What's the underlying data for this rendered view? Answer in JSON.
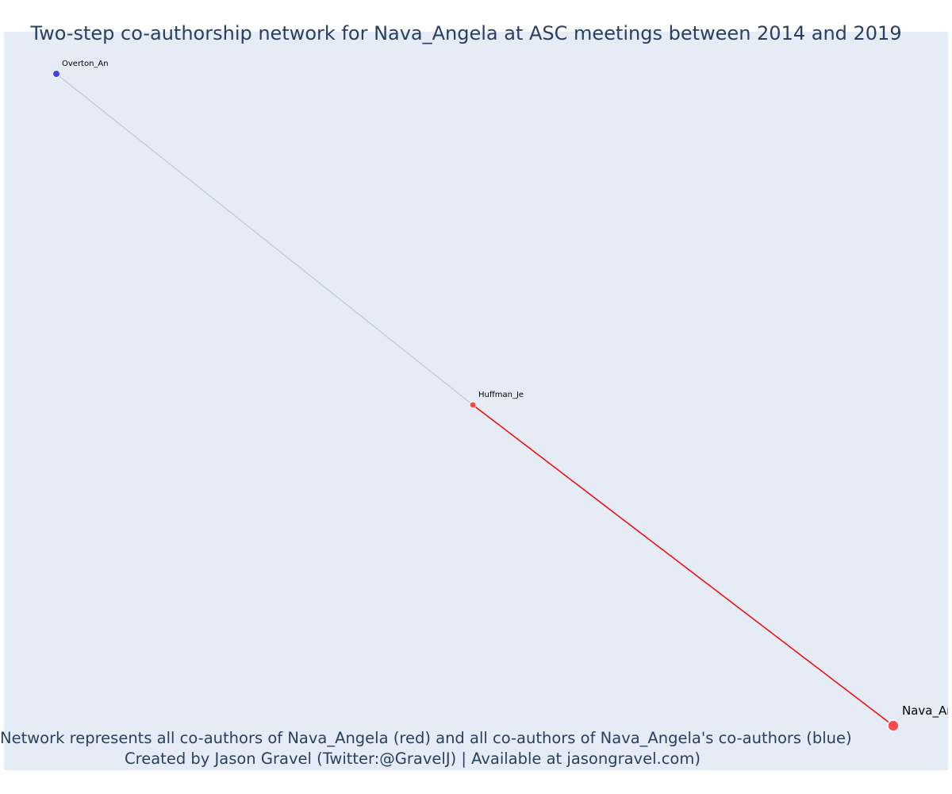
{
  "title": "Two-step co-authorship network for Nava_Angela at ASC meetings between 2014 and 2019",
  "captions": {
    "line1": "Network represents all co-authors of Nava_Angela (red) and all co-authors of Nava_Angela's co-authors (blue)",
    "line2": "Created by Jason Gravel (Twitter:@GravelJ) | Available at jasongravel.com)"
  },
  "colors": {
    "background": "#e5ecf6",
    "focal_and_coauthor": "#ff3b3b",
    "second_step": "#3a3af0",
    "edge_coauthor": "#ff0000",
    "edge_second_step": "#b9bfcf",
    "text": "#2a3f5f"
  },
  "network": {
    "nodes": [
      {
        "id": "Overton_An",
        "label": "Overton_An",
        "group": "second_step"
      },
      {
        "id": "Huffman_Je",
        "label": "Huffman_Je",
        "group": "coauthor"
      },
      {
        "id": "Nava_An",
        "label": "Nava_An",
        "group": "focal"
      }
    ],
    "edges": [
      {
        "source": "Overton_An",
        "target": "Huffman_Je",
        "type": "second_step"
      },
      {
        "source": "Huffman_Je",
        "target": "Nava_An",
        "type": "coauthor"
      }
    ]
  }
}
